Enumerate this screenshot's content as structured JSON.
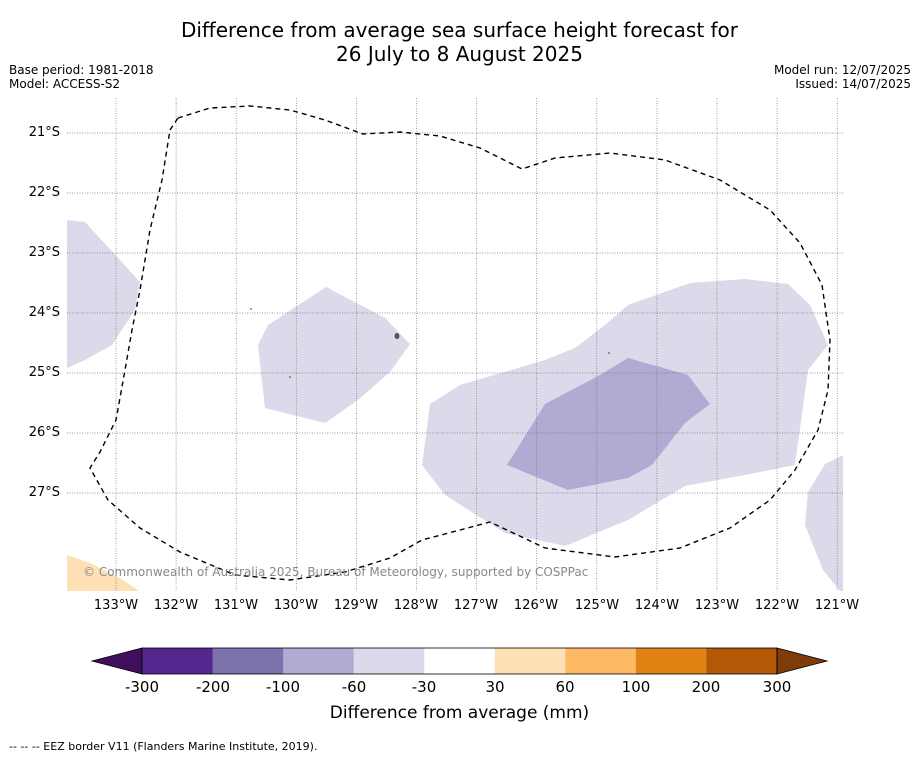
{
  "title": {
    "line1": "Difference from average sea surface height forecast for",
    "line2": "26 July to 8 August 2025"
  },
  "meta_left": {
    "base_period": "Base period: 1981-2018",
    "model": "Model: ACCESS-S2"
  },
  "meta_right": {
    "model_run": "Model run: 12/07/2025",
    "issued": "Issued: 14/07/2025"
  },
  "map": {
    "latitude_labels": [
      "21°S",
      "22°S",
      "23°S",
      "24°S",
      "25°S",
      "26°S",
      "27°S"
    ],
    "longitude_labels": [
      "133°W",
      "132°W",
      "131°W",
      "130°W",
      "129°W",
      "128°W",
      "127°W",
      "126°W",
      "125°W",
      "124°W",
      "123°W",
      "122°W",
      "121°W"
    ],
    "copyright": "© Commonwealth of Australia 2025, Bureau of Meteorology, supported by COSPPac"
  },
  "colorbar": {
    "labels": [
      "-300",
      "-200",
      "-100",
      "-60",
      "-30",
      "30",
      "60",
      "100",
      "200",
      "300"
    ],
    "colors": [
      "#3f0f5c",
      "#54278f",
      "#7e72ad",
      "#b1abd3",
      "#dadaeb",
      "#ffffff",
      "#fee0b6",
      "#fdb863",
      "#e08214",
      "#b35806",
      "#7f3b08"
    ],
    "title": "Difference from average (mm)"
  },
  "footer": "-- -- -- EEZ border V11 (Flanders Marine Institute, 2019)."
}
